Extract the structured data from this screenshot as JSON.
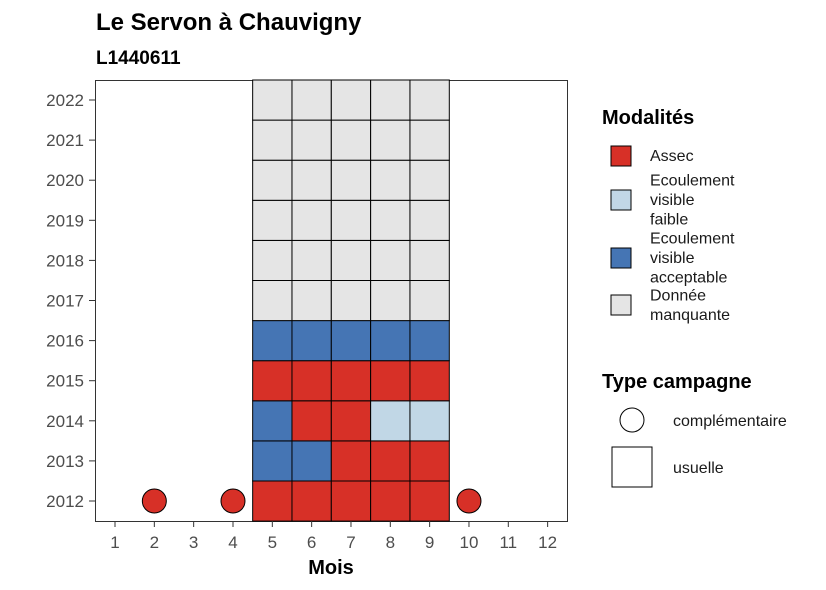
{
  "chart_data": {
    "type": "heatmap",
    "title": "Le Servon à Chauvigny",
    "subtitle": "L1440611",
    "xlabel": "Mois",
    "ylabel": "",
    "x_ticks": [
      "1",
      "2",
      "3",
      "4",
      "5",
      "6",
      "7",
      "8",
      "9",
      "10",
      "11",
      "12"
    ],
    "y_ticks": [
      "2012",
      "2013",
      "2014",
      "2015",
      "2016",
      "2017",
      "2018",
      "2019",
      "2020",
      "2021",
      "2022"
    ],
    "colors": {
      "Assec": "#d73027",
      "Ecoulement visible faible": "#c1d7e6",
      "Ecoulement visible acceptable": "#4575b4",
      "Donnée manquante": "#e5e5e5"
    },
    "legend": {
      "modalites_title": "Modalités",
      "modalites": [
        {
          "key": "Assec",
          "lines": [
            "Assec"
          ],
          "color": "#d73027"
        },
        {
          "key": "Ecoulement visible faible",
          "lines": [
            "Ecoulement",
            "visible",
            "faible"
          ],
          "color": "#c1d7e6"
        },
        {
          "key": "Ecoulement visible acceptable",
          "lines": [
            "Ecoulement",
            "visible",
            "acceptable"
          ],
          "color": "#4575b4"
        },
        {
          "key": "Donnée manquante",
          "lines": [
            "Donnée",
            "manquante"
          ],
          "color": "#e5e5e5"
        }
      ],
      "campagne_title": "Type campagne",
      "campagnes": [
        {
          "key": "complémentaire",
          "label": "complémentaire",
          "shape": "circle"
        },
        {
          "key": "usuelle",
          "label": "usuelle",
          "shape": "square"
        }
      ]
    },
    "cells": [
      {
        "month": 5,
        "year": 2012,
        "modalite": "Assec",
        "campagne": "usuelle"
      },
      {
        "month": 6,
        "year": 2012,
        "modalite": "Assec",
        "campagne": "usuelle"
      },
      {
        "month": 7,
        "year": 2012,
        "modalite": "Assec",
        "campagne": "usuelle"
      },
      {
        "month": 8,
        "year": 2012,
        "modalite": "Assec",
        "campagne": "usuelle"
      },
      {
        "month": 9,
        "year": 2012,
        "modalite": "Assec",
        "campagne": "usuelle"
      },
      {
        "month": 2,
        "year": 2012,
        "modalite": "Assec",
        "campagne": "complémentaire"
      },
      {
        "month": 4,
        "year": 2012,
        "modalite": "Assec",
        "campagne": "complémentaire"
      },
      {
        "month": 10,
        "year": 2012,
        "modalite": "Assec",
        "campagne": "complémentaire"
      },
      {
        "month": 5,
        "year": 2013,
        "modalite": "Ecoulement visible acceptable",
        "campagne": "usuelle"
      },
      {
        "month": 6,
        "year": 2013,
        "modalite": "Ecoulement visible acceptable",
        "campagne": "usuelle"
      },
      {
        "month": 7,
        "year": 2013,
        "modalite": "Assec",
        "campagne": "usuelle"
      },
      {
        "month": 8,
        "year": 2013,
        "modalite": "Assec",
        "campagne": "usuelle"
      },
      {
        "month": 9,
        "year": 2013,
        "modalite": "Assec",
        "campagne": "usuelle"
      },
      {
        "month": 5,
        "year": 2014,
        "modalite": "Ecoulement visible acceptable",
        "campagne": "usuelle"
      },
      {
        "month": 6,
        "year": 2014,
        "modalite": "Assec",
        "campagne": "usuelle"
      },
      {
        "month": 7,
        "year": 2014,
        "modalite": "Assec",
        "campagne": "usuelle"
      },
      {
        "month": 8,
        "year": 2014,
        "modalite": "Ecoulement visible faible",
        "campagne": "usuelle"
      },
      {
        "month": 9,
        "year": 2014,
        "modalite": "Ecoulement visible faible",
        "campagne": "usuelle"
      },
      {
        "month": 5,
        "year": 2015,
        "modalite": "Assec",
        "campagne": "usuelle"
      },
      {
        "month": 6,
        "year": 2015,
        "modalite": "Assec",
        "campagne": "usuelle"
      },
      {
        "month": 7,
        "year": 2015,
        "modalite": "Assec",
        "campagne": "usuelle"
      },
      {
        "month": 8,
        "year": 2015,
        "modalite": "Assec",
        "campagne": "usuelle"
      },
      {
        "month": 9,
        "year": 2015,
        "modalite": "Assec",
        "campagne": "usuelle"
      },
      {
        "month": 5,
        "year": 2016,
        "modalite": "Ecoulement visible acceptable",
        "campagne": "usuelle"
      },
      {
        "month": 6,
        "year": 2016,
        "modalite": "Ecoulement visible acceptable",
        "campagne": "usuelle"
      },
      {
        "month": 7,
        "year": 2016,
        "modalite": "Ecoulement visible acceptable",
        "campagne": "usuelle"
      },
      {
        "month": 8,
        "year": 2016,
        "modalite": "Ecoulement visible acceptable",
        "campagne": "usuelle"
      },
      {
        "month": 9,
        "year": 2016,
        "modalite": "Ecoulement visible acceptable",
        "campagne": "usuelle"
      },
      {
        "month": 5,
        "year": 2017,
        "modalite": "Donnée manquante",
        "campagne": "usuelle"
      },
      {
        "month": 6,
        "year": 2017,
        "modalite": "Donnée manquante",
        "campagne": "usuelle"
      },
      {
        "month": 7,
        "year": 2017,
        "modalite": "Donnée manquante",
        "campagne": "usuelle"
      },
      {
        "month": 8,
        "year": 2017,
        "modalite": "Donnée manquante",
        "campagne": "usuelle"
      },
      {
        "month": 9,
        "year": 2017,
        "modalite": "Donnée manquante",
        "campagne": "usuelle"
      },
      {
        "month": 5,
        "year": 2018,
        "modalite": "Donnée manquante",
        "campagne": "usuelle"
      },
      {
        "month": 6,
        "year": 2018,
        "modalite": "Donnée manquante",
        "campagne": "usuelle"
      },
      {
        "month": 7,
        "year": 2018,
        "modalite": "Donnée manquante",
        "campagne": "usuelle"
      },
      {
        "month": 8,
        "year": 2018,
        "modalite": "Donnée manquante",
        "campagne": "usuelle"
      },
      {
        "month": 9,
        "year": 2018,
        "modalite": "Donnée manquante",
        "campagne": "usuelle"
      },
      {
        "month": 5,
        "year": 2019,
        "modalite": "Donnée manquante",
        "campagne": "usuelle"
      },
      {
        "month": 6,
        "year": 2019,
        "modalite": "Donnée manquante",
        "campagne": "usuelle"
      },
      {
        "month": 7,
        "year": 2019,
        "modalite": "Donnée manquante",
        "campagne": "usuelle"
      },
      {
        "month": 8,
        "year": 2019,
        "modalite": "Donnée manquante",
        "campagne": "usuelle"
      },
      {
        "month": 9,
        "year": 2019,
        "modalite": "Donnée manquante",
        "campagne": "usuelle"
      },
      {
        "month": 5,
        "year": 2020,
        "modalite": "Donnée manquante",
        "campagne": "usuelle"
      },
      {
        "month": 6,
        "year": 2020,
        "modalite": "Donnée manquante",
        "campagne": "usuelle"
      },
      {
        "month": 7,
        "year": 2020,
        "modalite": "Donnée manquante",
        "campagne": "usuelle"
      },
      {
        "month": 8,
        "year": 2020,
        "modalite": "Donnée manquante",
        "campagne": "usuelle"
      },
      {
        "month": 9,
        "year": 2020,
        "modalite": "Donnée manquante",
        "campagne": "usuelle"
      },
      {
        "month": 5,
        "year": 2021,
        "modalite": "Donnée manquante",
        "campagne": "usuelle"
      },
      {
        "month": 6,
        "year": 2021,
        "modalite": "Donnée manquante",
        "campagne": "usuelle"
      },
      {
        "month": 7,
        "year": 2021,
        "modalite": "Donnée manquante",
        "campagne": "usuelle"
      },
      {
        "month": 8,
        "year": 2021,
        "modalite": "Donnée manquante",
        "campagne": "usuelle"
      },
      {
        "month": 9,
        "year": 2021,
        "modalite": "Donnée manquante",
        "campagne": "usuelle"
      },
      {
        "month": 5,
        "year": 2022,
        "modalite": "Donnée manquante",
        "campagne": "usuelle"
      },
      {
        "month": 6,
        "year": 2022,
        "modalite": "Donnée manquante",
        "campagne": "usuelle"
      },
      {
        "month": 7,
        "year": 2022,
        "modalite": "Donnée manquante",
        "campagne": "usuelle"
      },
      {
        "month": 8,
        "year": 2022,
        "modalite": "Donnée manquante",
        "campagne": "usuelle"
      },
      {
        "month": 9,
        "year": 2022,
        "modalite": "Donnée manquante",
        "campagne": "usuelle"
      }
    ]
  }
}
